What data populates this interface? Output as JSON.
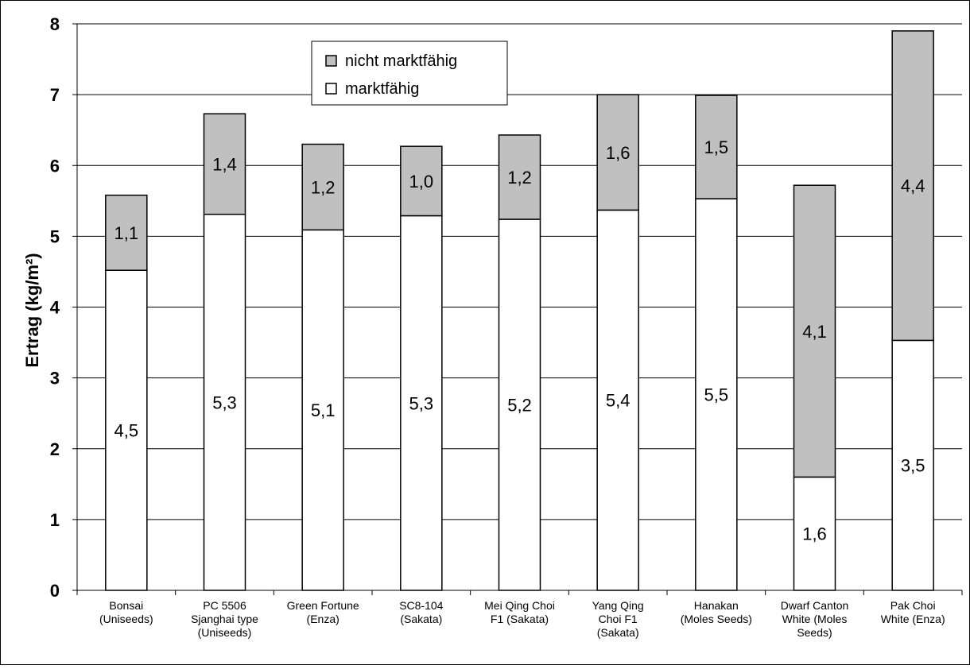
{
  "chart_data": {
    "type": "bar",
    "stacked": true,
    "title": "",
    "xlabel": "",
    "ylabel": "Ertrag (kg/m²)",
    "ylim": [
      0,
      8
    ],
    "yticks": [
      "0",
      "1",
      "2",
      "3",
      "4",
      "5",
      "6",
      "7",
      "8"
    ],
    "grid": "horizontal",
    "legend_position": "top-left-inside",
    "categories": [
      [
        "Bonsai",
        "(Uniseeds)"
      ],
      [
        "PC 5506",
        "Sjanghai type",
        "(Uniseeds)"
      ],
      [
        "Green Fortune",
        "(Enza)"
      ],
      [
        "SC8-104",
        "(Sakata)"
      ],
      [
        "Mei Qing Choi",
        "F1 (Sakata)"
      ],
      [
        "Yang Qing",
        "Choi F1",
        "(Sakata)"
      ],
      [
        "Hanakan",
        "(Moles Seeds)"
      ],
      [
        "Dwarf Canton",
        "White (Moles",
        "Seeds)"
      ],
      [
        "Pak Choi",
        "White (Enza)"
      ]
    ],
    "series": [
      {
        "name": "marktfähig",
        "color": "#ffffff",
        "values": [
          4.52,
          5.31,
          5.09,
          5.29,
          5.24,
          5.37,
          5.53,
          1.6,
          3.53
        ],
        "labels": [
          "4,5",
          "5,3",
          "5,1",
          "5,3",
          "5,2",
          "5,4",
          "5,5",
          "1,6",
          "3,5"
        ]
      },
      {
        "name": "nicht marktfähig",
        "color": "#c0c0c0",
        "values": [
          1.06,
          1.42,
          1.21,
          0.98,
          1.19,
          1.63,
          1.46,
          4.12,
          4.37
        ],
        "labels": [
          "1,1",
          "1,4",
          "1,2",
          "1,0",
          "1,2",
          "1,6",
          "1,5",
          "4,1",
          "4,4"
        ]
      }
    ],
    "legend": [
      {
        "name": "nicht marktfähig",
        "color": "#c0c0c0"
      },
      {
        "name": "marktfähig",
        "color": "#ffffff"
      }
    ]
  }
}
